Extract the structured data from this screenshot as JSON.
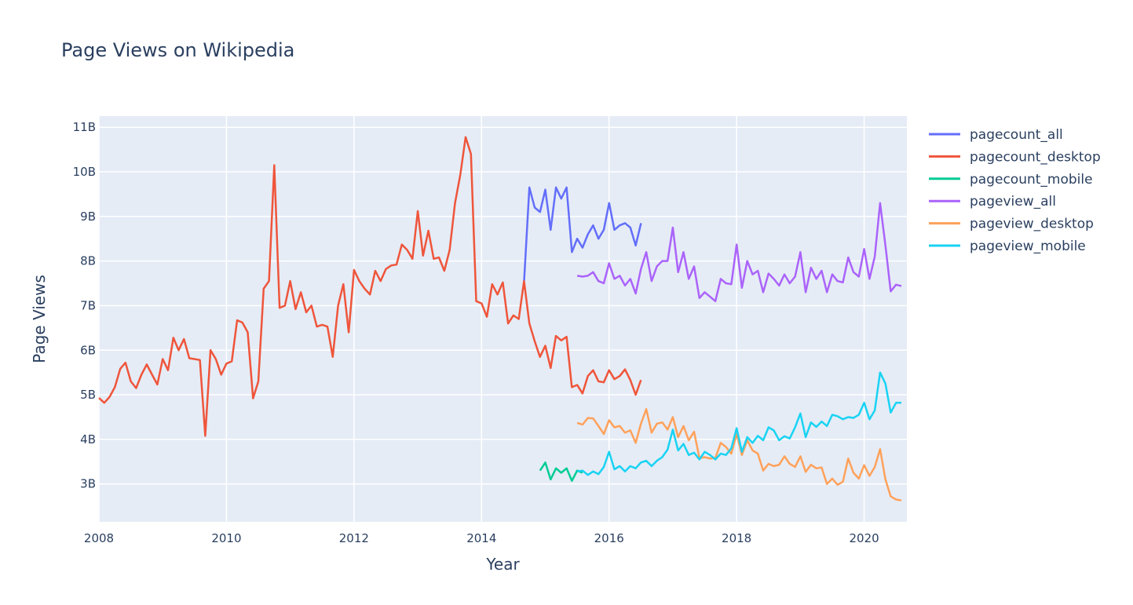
{
  "chart_data": {
    "type": "line",
    "title": "Page Views on Wikipedia",
    "xlabel": "Year",
    "ylabel": "Page Views",
    "xlim": [
      2008.0,
      2020.67
    ],
    "ylim": [
      2.15,
      11.25
    ],
    "y_unit": "billions",
    "x_ticks": [
      "2008",
      "2010",
      "2012",
      "2014",
      "2016",
      "2018",
      "2020"
    ],
    "x_tick_values": [
      2008,
      2010,
      2012,
      2014,
      2016,
      2018,
      2020
    ],
    "y_ticks": [
      "3B",
      "4B",
      "5B",
      "6B",
      "7B",
      "8B",
      "9B",
      "10B",
      "11B"
    ],
    "y_tick_values": [
      3,
      4,
      5,
      6,
      7,
      8,
      9,
      10,
      11
    ],
    "grid": true,
    "plot_background": "#e5ecf6",
    "legend_position": "right",
    "series": [
      {
        "name": "pagecount_all",
        "color": "#636efa",
        "x_start": 2014.667,
        "values": [
          7.55,
          9.65,
          9.2,
          9.1,
          9.6,
          8.7,
          9.65,
          9.4,
          9.65,
          8.2,
          8.5,
          8.3,
          8.6,
          8.8,
          8.5,
          8.7,
          9.3,
          8.7,
          8.8,
          8.85,
          8.75,
          8.35,
          8.85
        ]
      },
      {
        "name": "pagecount_desktop",
        "color": "#ef553b",
        "x_start": 2008.0,
        "values": [
          4.93,
          4.82,
          4.95,
          5.17,
          5.58,
          5.72,
          5.3,
          5.15,
          5.45,
          5.68,
          5.45,
          5.23,
          5.8,
          5.55,
          6.28,
          6.0,
          6.25,
          5.82,
          5.8,
          5.78,
          4.08,
          6.0,
          5.8,
          5.45,
          5.7,
          5.75,
          6.67,
          6.62,
          6.4,
          4.92,
          5.3,
          7.38,
          7.55,
          10.15,
          6.95,
          7.0,
          7.55,
          6.92,
          7.3,
          6.85,
          7.0,
          6.53,
          6.57,
          6.53,
          5.85,
          7.0,
          7.48,
          6.4,
          7.8,
          7.55,
          7.38,
          7.25,
          7.78,
          7.55,
          7.82,
          7.9,
          7.92,
          8.37,
          8.25,
          8.05,
          9.12,
          8.12,
          8.68,
          8.05,
          8.08,
          7.78,
          8.25,
          9.3,
          9.93,
          10.78,
          10.4,
          7.1,
          7.05,
          6.75,
          7.48,
          7.25,
          7.52,
          6.6,
          6.78,
          6.7,
          7.55,
          6.6,
          6.2,
          5.85,
          6.1,
          5.6,
          6.32,
          6.22,
          6.3,
          5.17,
          5.22,
          5.03,
          5.42,
          5.55,
          5.3,
          5.28,
          5.55,
          5.35,
          5.42,
          5.57,
          5.33,
          5.0,
          5.33
        ]
      },
      {
        "name": "pagecount_mobile",
        "color": "#00cc96",
        "x_start": 2014.917,
        "values": [
          3.3,
          3.48,
          3.1,
          3.35,
          3.25,
          3.35,
          3.07,
          3.3,
          3.25
        ]
      },
      {
        "name": "pageview_all",
        "color": "#ab63fa",
        "x_start": 2015.5,
        "values": [
          7.67,
          7.65,
          7.67,
          7.75,
          7.55,
          7.5,
          7.95,
          7.6,
          7.67,
          7.45,
          7.6,
          7.27,
          7.82,
          8.2,
          7.55,
          7.88,
          8.0,
          8.0,
          8.75,
          7.75,
          8.2,
          7.6,
          7.88,
          7.17,
          7.3,
          7.2,
          7.1,
          7.6,
          7.5,
          7.48,
          8.37,
          7.4,
          8.0,
          7.7,
          7.78,
          7.3,
          7.72,
          7.6,
          7.45,
          7.7,
          7.5,
          7.65,
          8.2,
          7.3,
          7.85,
          7.6,
          7.78,
          7.3,
          7.7,
          7.55,
          7.52,
          8.08,
          7.75,
          7.65,
          8.27,
          7.6,
          8.1,
          9.3,
          8.35,
          7.32,
          7.47,
          7.44
        ]
      },
      {
        "name": "pageview_desktop",
        "color": "#ffa15a",
        "x_start": 2015.5,
        "values": [
          4.37,
          4.33,
          4.48,
          4.47,
          4.3,
          4.12,
          4.43,
          4.27,
          4.3,
          4.15,
          4.2,
          3.92,
          4.35,
          4.68,
          4.15,
          4.35,
          4.38,
          4.22,
          4.5,
          4.05,
          4.3,
          3.98,
          4.17,
          3.58,
          3.6,
          3.57,
          3.58,
          3.92,
          3.83,
          3.68,
          4.12,
          3.65,
          3.98,
          3.75,
          3.68,
          3.3,
          3.45,
          3.4,
          3.43,
          3.62,
          3.45,
          3.38,
          3.62,
          3.27,
          3.43,
          3.35,
          3.37,
          3.0,
          3.12,
          2.98,
          3.05,
          3.57,
          3.25,
          3.12,
          3.42,
          3.18,
          3.38,
          3.78,
          3.1,
          2.72,
          2.65,
          2.63
        ]
      },
      {
        "name": "pageview_mobile",
        "color": "#19d3f3",
        "x_start": 2015.5,
        "values": [
          3.28,
          3.3,
          3.2,
          3.28,
          3.22,
          3.38,
          3.72,
          3.33,
          3.4,
          3.28,
          3.4,
          3.35,
          3.48,
          3.52,
          3.4,
          3.52,
          3.6,
          3.77,
          4.22,
          3.75,
          3.9,
          3.65,
          3.7,
          3.55,
          3.72,
          3.65,
          3.55,
          3.68,
          3.65,
          3.8,
          4.25,
          3.72,
          4.05,
          3.92,
          4.08,
          3.98,
          4.27,
          4.2,
          3.98,
          4.07,
          4.02,
          4.27,
          4.58,
          4.05,
          4.38,
          4.28,
          4.4,
          4.3,
          4.55,
          4.52,
          4.45,
          4.5,
          4.48,
          4.55,
          4.82,
          4.45,
          4.65,
          5.5,
          5.25,
          4.6,
          4.82,
          4.82
        ]
      }
    ]
  }
}
